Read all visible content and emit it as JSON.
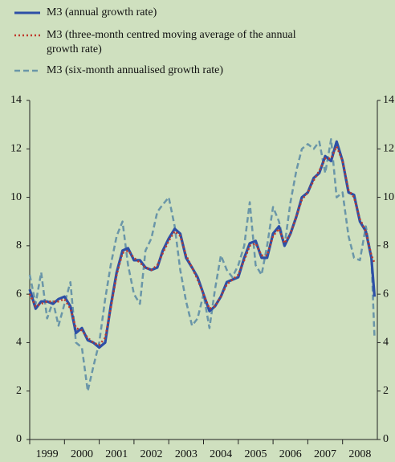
{
  "chart_data": {
    "type": "line",
    "xlim": [
      1999,
      2009
    ],
    "ylim": [
      0,
      14
    ],
    "yticks": [
      0,
      2,
      4,
      6,
      8,
      10,
      12,
      14
    ],
    "xticks": [
      {
        "value": 1999,
        "label": "1999"
      },
      {
        "value": 2000,
        "label": "2000"
      },
      {
        "value": 2001,
        "label": "2001"
      },
      {
        "value": 2002,
        "label": "2002"
      },
      {
        "value": 2003,
        "label": "2003"
      },
      {
        "value": 2004,
        "label": "2004"
      },
      {
        "value": 2005,
        "label": "2005"
      },
      {
        "value": 2006,
        "label": "2006"
      },
      {
        "value": 2007,
        "label": "2007"
      },
      {
        "value": 2008,
        "label": "2008"
      }
    ],
    "x": [
      1999.0,
      1999.17,
      1999.33,
      1999.5,
      1999.67,
      1999.83,
      2000.0,
      2000.17,
      2000.33,
      2000.5,
      2000.67,
      2000.83,
      2001.0,
      2001.17,
      2001.33,
      2001.5,
      2001.67,
      2001.83,
      2002.0,
      2002.17,
      2002.33,
      2002.5,
      2002.67,
      2002.83,
      2003.0,
      2003.17,
      2003.33,
      2003.5,
      2003.67,
      2003.83,
      2004.0,
      2004.17,
      2004.33,
      2004.5,
      2004.67,
      2004.83,
      2005.0,
      2005.17,
      2005.33,
      2005.5,
      2005.67,
      2005.83,
      2006.0,
      2006.17,
      2006.33,
      2006.5,
      2006.67,
      2006.83,
      2007.0,
      2007.17,
      2007.33,
      2007.5,
      2007.67,
      2007.83,
      2008.0,
      2008.17,
      2008.33,
      2008.5,
      2008.67,
      2008.83,
      2008.92
    ],
    "series": [
      {
        "name": "M3 (annual growth rate)",
        "color": "#2d4fa6",
        "style": "solid",
        "values": [
          6.2,
          5.4,
          5.7,
          5.7,
          5.6,
          5.8,
          5.9,
          5.5,
          4.4,
          4.6,
          4.1,
          4.0,
          3.8,
          4.0,
          5.5,
          6.9,
          7.8,
          7.9,
          7.4,
          7.4,
          7.1,
          7.0,
          7.1,
          7.8,
          8.3,
          8.7,
          8.5,
          7.5,
          7.1,
          6.7,
          6.0,
          5.3,
          5.5,
          5.9,
          6.5,
          6.6,
          6.7,
          7.5,
          8.1,
          8.2,
          7.5,
          7.5,
          8.5,
          8.8,
          8.0,
          8.5,
          9.2,
          10.0,
          10.2,
          10.8,
          11.0,
          11.7,
          11.5,
          12.3,
          11.5,
          10.2,
          10.1,
          9.0,
          8.6,
          7.5,
          5.9
        ]
      },
      {
        "name": "M3 (three-month centred moving average of the annual growth rate)",
        "color": "#c0392b",
        "style": "dotted",
        "values": [
          6.0,
          5.5,
          5.6,
          5.7,
          5.7,
          5.7,
          5.8,
          5.4,
          4.6,
          4.5,
          4.2,
          4.0,
          3.9,
          4.2,
          5.4,
          6.8,
          7.7,
          7.8,
          7.5,
          7.3,
          7.1,
          7.0,
          7.2,
          7.7,
          8.2,
          8.6,
          8.4,
          7.6,
          7.1,
          6.6,
          6.0,
          5.4,
          5.5,
          5.9,
          6.4,
          6.6,
          6.8,
          7.4,
          8.0,
          8.1,
          7.6,
          7.6,
          8.4,
          8.7,
          8.1,
          8.5,
          9.2,
          9.9,
          10.2,
          10.7,
          11.1,
          11.6,
          11.6,
          12.1,
          11.5,
          10.3,
          10.0,
          9.1,
          8.6,
          7.6,
          7.3
        ]
      },
      {
        "name": "M3 (six-month annualised growth rate)",
        "color": "#6a96a8",
        "style": "dashed",
        "values": [
          6.8,
          5.6,
          6.9,
          5.0,
          5.7,
          4.7,
          5.6,
          6.5,
          4.0,
          3.8,
          2.0,
          3.0,
          4.0,
          5.8,
          7.2,
          8.4,
          9.0,
          7.2,
          6.0,
          5.6,
          7.8,
          8.3,
          9.4,
          9.7,
          10.0,
          8.8,
          7.0,
          5.7,
          4.7,
          5.0,
          6.0,
          4.6,
          6.2,
          7.6,
          7.0,
          6.7,
          7.2,
          8.0,
          9.8,
          7.2,
          6.8,
          8.0,
          9.6,
          9.0,
          8.0,
          9.8,
          11.1,
          12.0,
          12.2,
          12.0,
          12.3,
          11.0,
          12.4,
          10.0,
          10.2,
          8.4,
          7.5,
          7.4,
          8.8,
          7.5,
          4.2
        ]
      }
    ]
  }
}
